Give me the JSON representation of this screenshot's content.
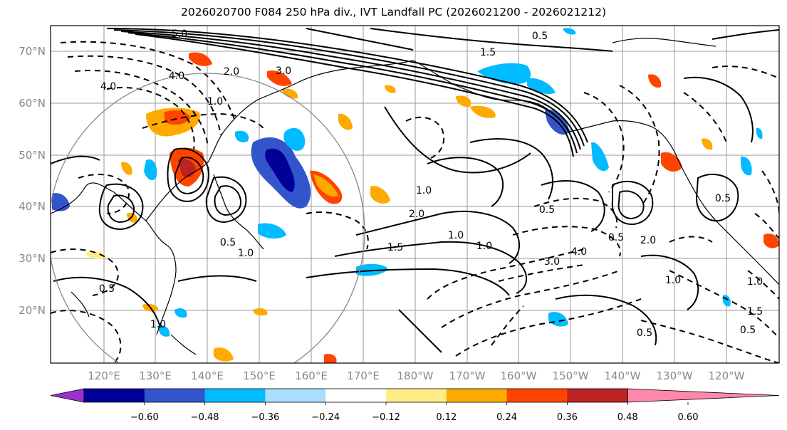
{
  "title": "2026020700 F084 250 hPa div., IVT Landfall PC (2026021200 - 2026021212)",
  "axes": {
    "lat_labels": [
      "70°N",
      "60°N",
      "50°N",
      "40°N",
      "30°N",
      "20°N"
    ],
    "lon_labels": [
      "120°E",
      "130°E",
      "140°E",
      "150°E",
      "160°E",
      "170°E",
      "180°W",
      "170°W",
      "160°W",
      "150°W",
      "140°W",
      "130°W",
      "120°W"
    ]
  },
  "colorbar": {
    "colors": [
      "#9933cc",
      "#000099",
      "#3355cc",
      "#00bbff",
      "#aaddff",
      "#ffffff",
      "#ffee88",
      "#ffaa00",
      "#ff4400",
      "#bb2222",
      "#ff88aa"
    ],
    "labels": [
      "−0.60",
      "−0.48",
      "−0.36",
      "−0.24",
      "−0.12",
      "0.12",
      "0.24",
      "0.36",
      "0.48",
      "0.60"
    ]
  },
  "contour_labels": [
    "5.0",
    "4.0",
    "4.0",
    "3.0",
    "2.0",
    "1.5",
    "0.5",
    "1.0",
    "1.0",
    "0.5",
    "1.5",
    "1.0",
    "1.0",
    "0.5",
    "0.5",
    "3.0",
    "4.0",
    "2.0",
    "1.0",
    "0.5",
    "0.5",
    "0.5",
    "1.0",
    "1.5",
    "1.0",
    "0.5",
    "2.0",
    "1.0"
  ]
}
